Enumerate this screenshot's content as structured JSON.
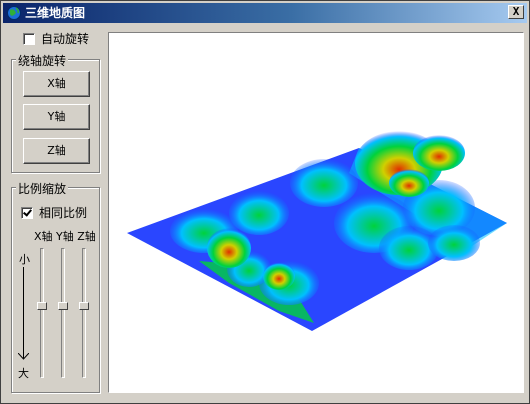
{
  "window": {
    "title": "三维地质图",
    "close_label": "X"
  },
  "auto_rotate": {
    "label": "自动旋转",
    "checked": false
  },
  "rotate_group": {
    "legend": "绕轴旋转",
    "buttons": {
      "x": "X轴",
      "y": "Y轴",
      "z": "Z轴"
    }
  },
  "scale_group": {
    "legend": "比例缩放",
    "same_ratio": {
      "label": "相同比例",
      "checked": true
    },
    "axis_labels": "X轴 Y轴 Z轴",
    "small_label": "小",
    "large_label": "大",
    "sliders": [
      {
        "name": "x-scale",
        "position": 0.44
      },
      {
        "name": "y-scale",
        "position": 0.44
      },
      {
        "name": "z-scale",
        "position": 0.44
      }
    ]
  },
  "colors": {
    "low": "#1f3cff",
    "mid_low": "#00c0ff",
    "mid": "#00d23c",
    "mid_high": "#d0d000",
    "high": "#e03000"
  }
}
